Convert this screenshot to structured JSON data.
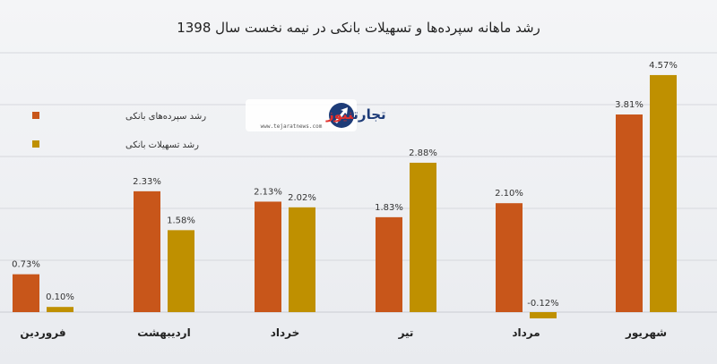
{
  "chart_data": {
    "type": "bar",
    "title": "رشد ماهانه سپرده‌ها و تسهیلات بانکی در نیمه نخست سال 1398",
    "categories": [
      "فروردین",
      "اردیبهشت",
      "خرداد",
      "تیر",
      "مرداد",
      "شهریور"
    ],
    "series": [
      {
        "name": "رشد سپرده‌های بانکی",
        "color": "#c8561a",
        "values": [
          0.73,
          2.33,
          2.13,
          1.83,
          2.1,
          3.81
        ],
        "labels": [
          "0.73%",
          "2.33%",
          "2.13%",
          "1.83%",
          "2.10%",
          "3.81%"
        ]
      },
      {
        "name": "رشد تسهیلات بانکی",
        "color": "#bf9000",
        "values": [
          0.1,
          1.58,
          2.02,
          2.88,
          -0.12,
          4.57
        ],
        "labels": [
          "0.10%",
          "1.58%",
          "2.02%",
          "2.88%",
          "-0.12%",
          "4.57%"
        ]
      }
    ],
    "ylim": [
      -0.12,
      5
    ],
    "grid": true,
    "legend_position": "top-left"
  },
  "logo": {
    "name_part1": "تجارت",
    "name_part2": "نیوز",
    "url": "www.tejaratnews.com",
    "icon": "tejaratnews-logo-icon"
  }
}
